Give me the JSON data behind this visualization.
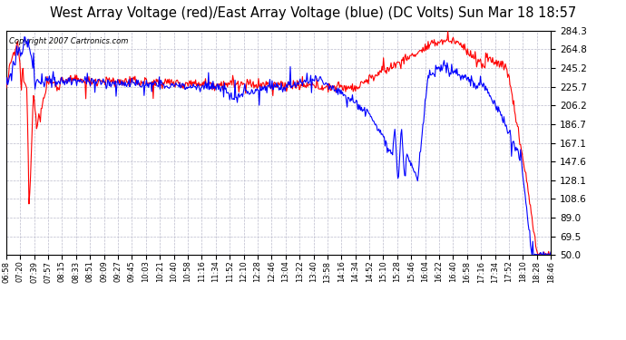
{
  "title": "West Array Voltage (red)/East Array Voltage (blue) (DC Volts) Sun Mar 18 18:57",
  "copyright_text": "Copyright 2007 Cartronics.com",
  "ylim": [
    50.0,
    284.3
  ],
  "yticks": [
    50.0,
    69.5,
    89.0,
    108.6,
    128.1,
    147.6,
    167.1,
    186.7,
    206.2,
    225.7,
    245.2,
    264.8,
    284.3
  ],
  "background_color": "#ffffff",
  "grid_color": "#bbbbcc",
  "title_fontsize": 10.5,
  "red_color": "#ff0000",
  "blue_color": "#0000ff",
  "x_labels": [
    "06:58",
    "07:20",
    "07:39",
    "07:57",
    "08:15",
    "08:33",
    "08:51",
    "09:09",
    "09:27",
    "09:45",
    "10:03",
    "10:21",
    "10:40",
    "10:58",
    "11:16",
    "11:34",
    "11:52",
    "12:10",
    "12:28",
    "12:46",
    "13:04",
    "13:22",
    "13:40",
    "13:58",
    "14:16",
    "14:34",
    "14:52",
    "15:10",
    "15:28",
    "15:46",
    "16:04",
    "16:22",
    "16:40",
    "16:58",
    "17:16",
    "17:34",
    "17:52",
    "18:10",
    "18:28",
    "18:46"
  ]
}
